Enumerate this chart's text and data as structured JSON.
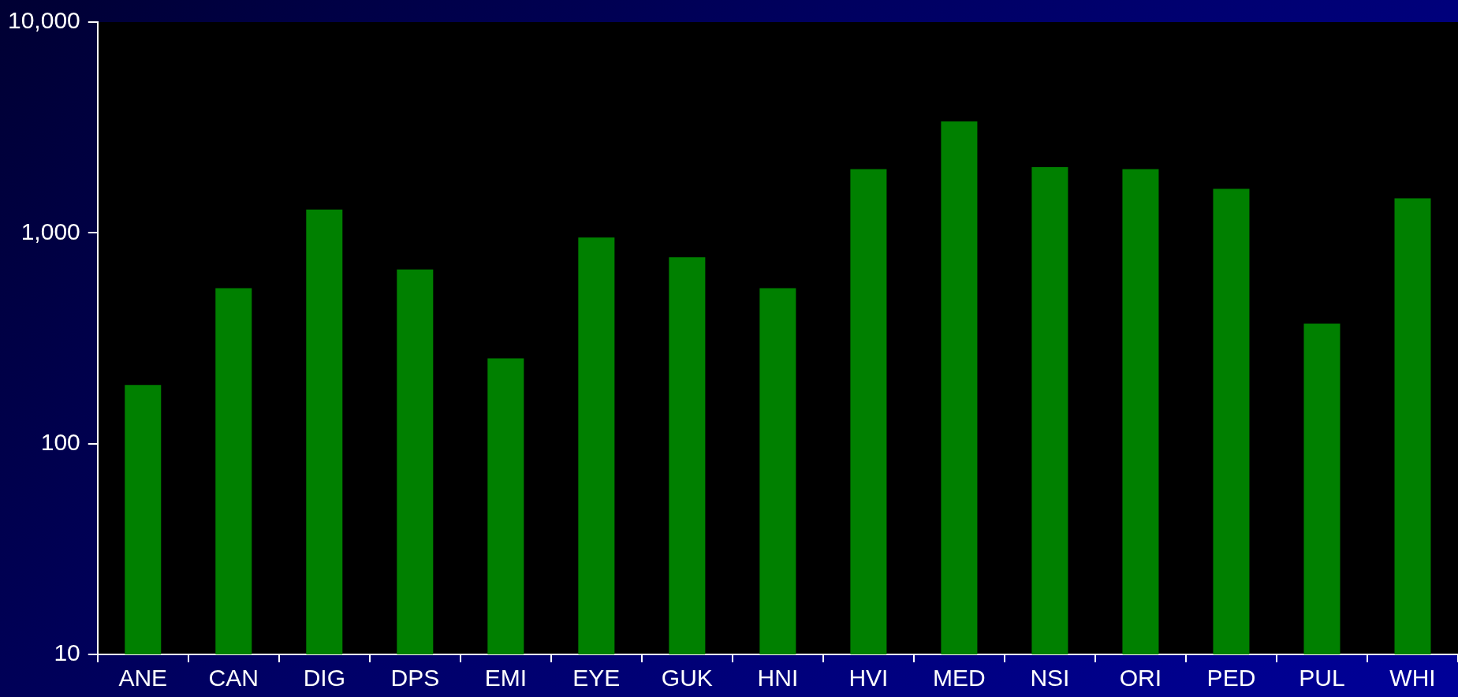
{
  "chart_data": {
    "type": "bar",
    "categories": [
      "ANE",
      "CAN",
      "DIG",
      "DPS",
      "EMI",
      "EYE",
      "GUK",
      "HNI",
      "HVI",
      "MED",
      "NSI",
      "ORI",
      "PED",
      "PUL",
      "WHI"
    ],
    "values": [
      190,
      547,
      1290,
      670,
      254,
      950,
      766,
      547,
      2005,
      3380,
      2050,
      2005,
      1618,
      371,
      1460
    ],
    "color": "#008000",
    "log": "y",
    "ylim": [
      10,
      10000
    ],
    "yticks": [
      10,
      100,
      {
        "value": 1000,
        "label": "1,000"
      },
      {
        "value": 10000,
        "label": "10,000"
      }
    ],
    "grid": false,
    "legend": false
  }
}
